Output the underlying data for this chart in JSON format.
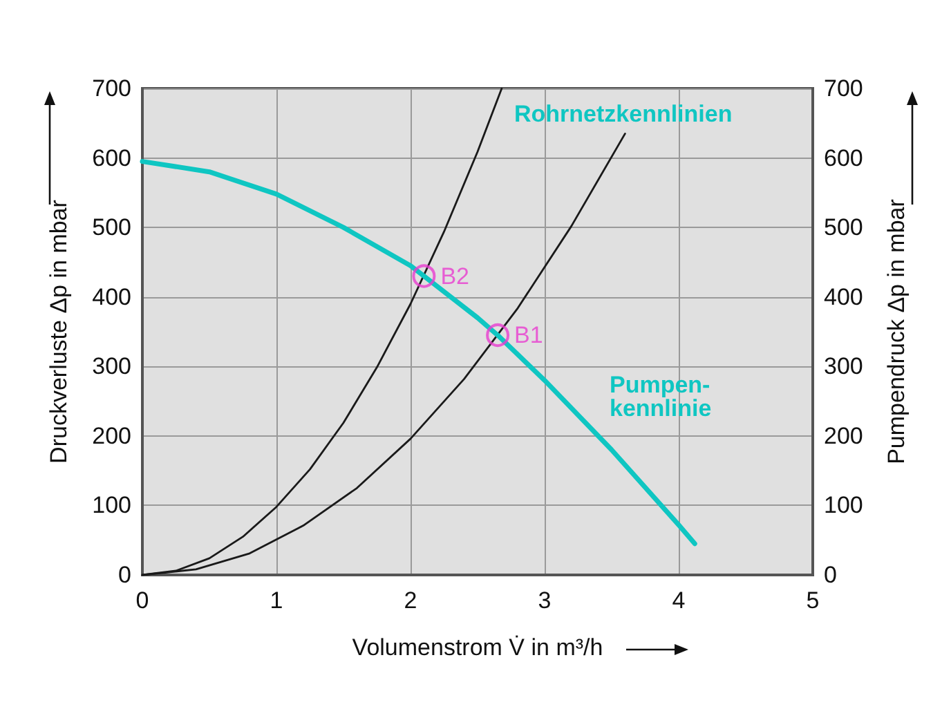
{
  "chart_data": {
    "type": "line",
    "xlabel": "Volumenstrom V̇ in m³/h",
    "ylabel": "Druckverluste Δp in mbar",
    "y2label": "Pumpendruck Δp in mbar",
    "xlim": [
      0,
      5
    ],
    "xticks": [
      0,
      1,
      2,
      3,
      4,
      5
    ],
    "ylim": [
      0,
      700
    ],
    "yticks": [
      0,
      100,
      200,
      300,
      400,
      500,
      600,
      700
    ],
    "y2lim": [
      0,
      700
    ],
    "y2ticks": [
      0,
      100,
      200,
      300,
      400,
      500,
      600,
      700
    ],
    "grid": true,
    "line_style": "solid",
    "series": [
      {
        "color": "#1a1a1a",
        "x": [
          0,
          0.25,
          0.5,
          0.75,
          1,
          1.25,
          1.5,
          1.75,
          2,
          2.25,
          2.5,
          2.68
        ],
        "values": [
          0,
          6,
          24,
          55,
          98,
          152,
          219,
          299,
          390,
          494,
          609,
          700
        ]
      },
      {
        "color": "#1a1a1a",
        "x": [
          0,
          0.4,
          0.8,
          1.2,
          1.6,
          2,
          2.4,
          2.8,
          3.2,
          3.6
        ],
        "values": [
          0,
          8,
          31,
          71,
          125,
          196,
          282,
          384,
          502,
          635
        ]
      },
      {
        "color": "#0fc6c2",
        "x": [
          0,
          0.5,
          1,
          1.5,
          2,
          2.1,
          2.5,
          2.65,
          3,
          3.5,
          4,
          4.12
        ],
        "values": [
          595,
          580,
          548,
          500,
          445,
          430,
          370,
          345,
          280,
          180,
          72,
          45
        ]
      },
      {
        "type": "scatter",
        "marker": "circle",
        "color": "#e83ccf",
        "x": [
          2.1,
          2.65
        ],
        "values": [
          430,
          345
        ]
      }
    ],
    "annotations": [
      {
        "text": "B2",
        "x": 2.1,
        "y": 430
      },
      {
        "text": "B1",
        "x": 2.65,
        "y": 345
      },
      "Rohrnetzkennlinien",
      "Pumpen-\nkennlinie"
    ]
  }
}
